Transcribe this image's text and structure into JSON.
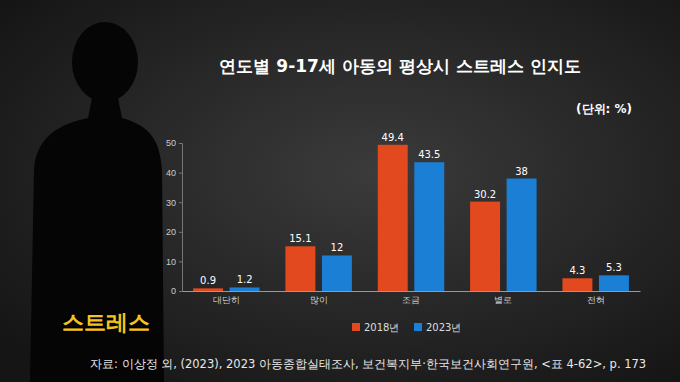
{
  "chart_data": {
    "type": "bar",
    "title": "연도별 9-17세 아동의 평상시 스트레스 인지도",
    "annotations": [
      "(단위: %)",
      "스트레스",
      "자료: 이상정 외, (2023), 2023 아동종합실태조사, 보건복지부·한국보건사회연구원, <표 4-62>, p. 173"
    ],
    "categories": [
      "대단히",
      "많이",
      "조금",
      "별로",
      "전혀"
    ],
    "series": [
      {
        "name": "2018년",
        "color": "#e2491e",
        "values": [
          0.9,
          15.1,
          49.4,
          30.2,
          4.3
        ]
      },
      {
        "name": "2023년",
        "color": "#1b7fd6",
        "values": [
          1.2,
          12,
          43.5,
          38,
          5.3
        ]
      }
    ],
    "ylim": [
      0,
      50
    ],
    "yticks": [
      0,
      10,
      20,
      30,
      40,
      50
    ],
    "grid": false,
    "data_labels": true,
    "legend": "bottom"
  }
}
